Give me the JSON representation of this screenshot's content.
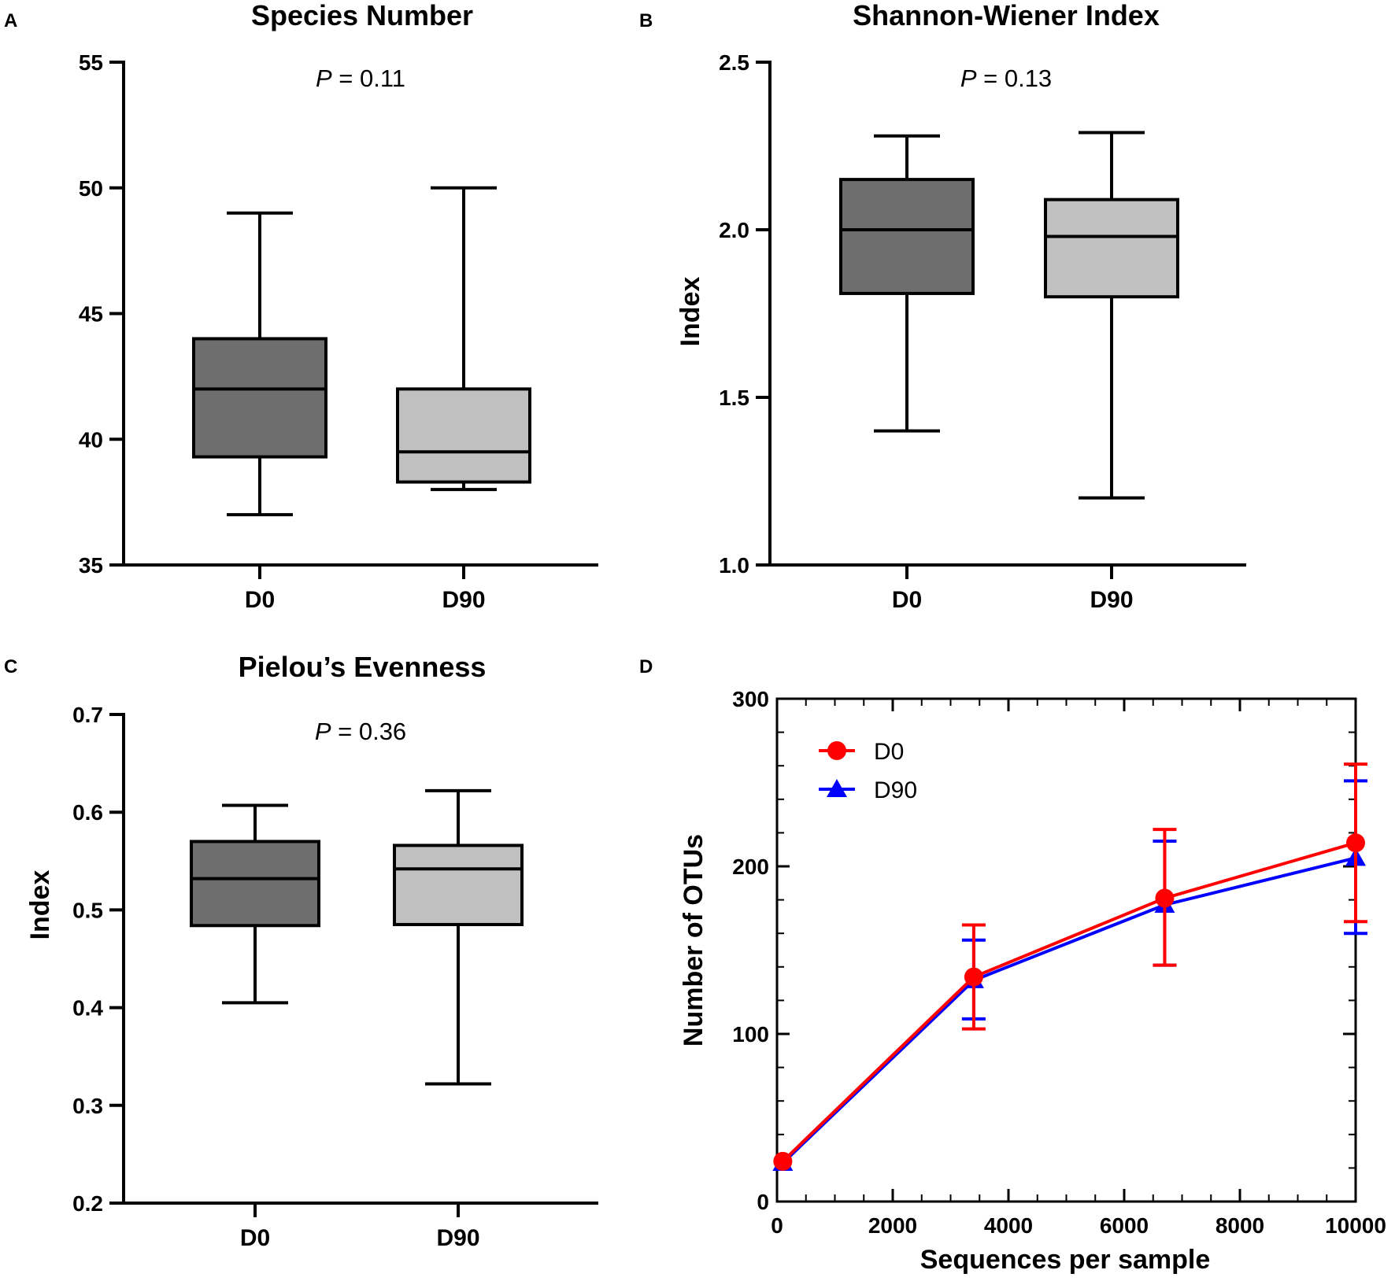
{
  "chart_data": [
    {
      "panel": "A",
      "type": "box",
      "title": "Species Number",
      "ylabel": "",
      "ylim": [
        35,
        55
      ],
      "yticks": [
        "35",
        "40",
        "45",
        "50",
        "55"
      ],
      "annotation": {
        "p_label": "P",
        "p_value": "= 0.11"
      },
      "categories": [
        "D0",
        "D90"
      ],
      "boxes": [
        {
          "name": "D0",
          "min": 37,
          "q1": 39.3,
          "median": 42,
          "q3": 44,
          "max": 49,
          "color": "#6e6e6e"
        },
        {
          "name": "D90",
          "min": 38,
          "q1": 38.3,
          "median": 39.5,
          "q3": 42,
          "max": 50,
          "color": "#c0c0c0"
        }
      ]
    },
    {
      "panel": "B",
      "type": "box",
      "title": "Shannon-Wiener Index",
      "ylabel": "Index",
      "ylim": [
        1.0,
        2.5
      ],
      "yticks": [
        "1.0",
        "1.5",
        "2.0",
        "2.5"
      ],
      "annotation": {
        "p_label": "P",
        "p_value": "= 0.13"
      },
      "categories": [
        "D0",
        "D90"
      ],
      "boxes": [
        {
          "name": "D0",
          "min": 1.4,
          "q1": 1.81,
          "median": 2.0,
          "q3": 2.15,
          "max": 2.28,
          "color": "#6e6e6e"
        },
        {
          "name": "D90",
          "min": 1.2,
          "q1": 1.8,
          "median": 1.98,
          "q3": 2.09,
          "max": 2.29,
          "color": "#c0c0c0"
        }
      ]
    },
    {
      "panel": "C",
      "type": "box",
      "title": "Pielou’s Evenness",
      "ylabel": "Index",
      "ylim": [
        0.2,
        0.7
      ],
      "yticks": [
        "0.2",
        "0.3",
        "0.4",
        "0.5",
        "0.6",
        "0.7"
      ],
      "annotation": {
        "p_label": "P",
        "p_value": "= 0.36"
      },
      "categories": [
        "D0",
        "D90"
      ],
      "boxes": [
        {
          "name": "D0",
          "min": 0.405,
          "q1": 0.484,
          "median": 0.532,
          "q3": 0.57,
          "max": 0.607,
          "color": "#6e6e6e"
        },
        {
          "name": "D90",
          "min": 0.322,
          "q1": 0.485,
          "median": 0.542,
          "q3": 0.566,
          "max": 0.622,
          "color": "#c0c0c0"
        }
      ]
    },
    {
      "panel": "D",
      "type": "line",
      "title": "",
      "xlabel": "Sequences per sample",
      "ylabel": "Number of OTUs",
      "xlim": [
        0,
        10000
      ],
      "ylim": [
        0,
        300
      ],
      "xticks": [
        "0",
        "2000",
        "4000",
        "6000",
        "8000",
        "10000"
      ],
      "yticks": [
        "0",
        "100",
        "200",
        "300"
      ],
      "legend": "top-left",
      "series": [
        {
          "name": "D0",
          "color": "#ff0000",
          "marker": "circle",
          "x": [
            100,
            3400,
            6700,
            10000
          ],
          "y": [
            24,
            134,
            181,
            214
          ],
          "err_low": [
            24,
            103,
            141,
            167
          ],
          "err_high": [
            24,
            165,
            222,
            261
          ]
        },
        {
          "name": "D90",
          "color": "#0000ff",
          "marker": "triangle",
          "x": [
            100,
            3400,
            6700,
            10000
          ],
          "y": [
            23,
            132,
            177,
            205
          ],
          "err_low": [
            23,
            109,
            141,
            160
          ],
          "err_high": [
            23,
            156,
            215,
            251
          ]
        }
      ]
    }
  ]
}
